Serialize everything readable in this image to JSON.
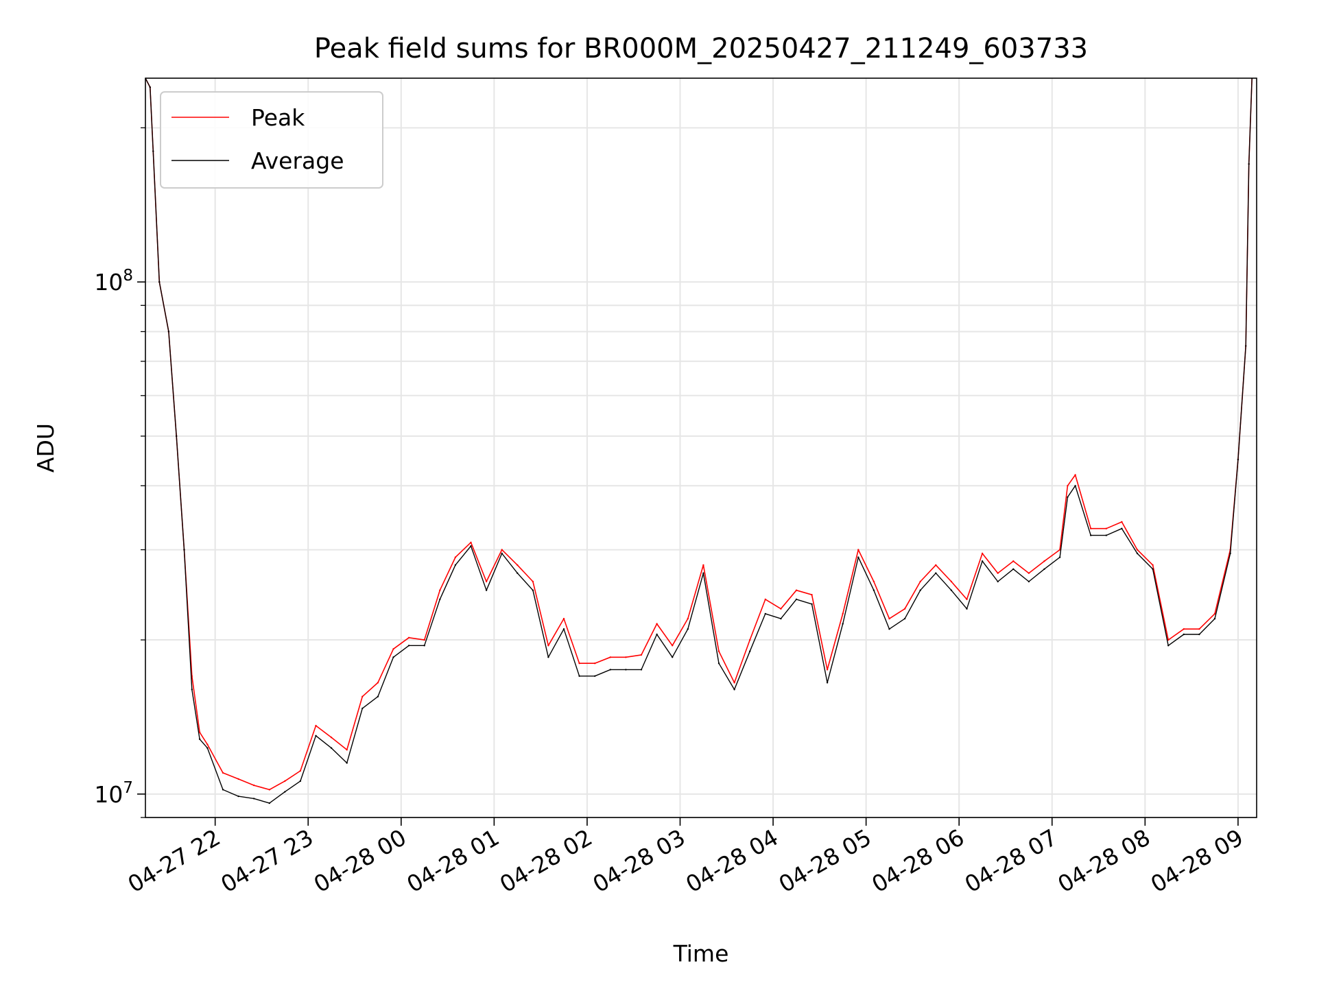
{
  "chart_data": {
    "type": "line",
    "title": "Peak field sums for BR000M_20250427_211249_603733",
    "xlabel": "Time",
    "ylabel": "ADU",
    "yscale": "log",
    "ylim": [
      9000000,
      250000000
    ],
    "xlim": [
      "2025-04-27 21:15",
      "2025-04-28 09:12"
    ],
    "grid": true,
    "legend_position": "top-left",
    "y_major_ticks": [
      {
        "value": 10000000,
        "base": "10",
        "exp": "7"
      },
      {
        "value": 100000000,
        "base": "10",
        "exp": "8"
      }
    ],
    "y_minor_ticks": [
      9000000,
      20000000,
      30000000,
      40000000,
      50000000,
      60000000,
      70000000,
      80000000,
      90000000,
      200000000
    ],
    "x_ticks": [
      {
        "value": "2025-04-27 22:00",
        "label": "04-27 22"
      },
      {
        "value": "2025-04-27 23:00",
        "label": "04-27 23"
      },
      {
        "value": "2025-04-28 00:00",
        "label": "04-28 00"
      },
      {
        "value": "2025-04-28 01:00",
        "label": "04-28 01"
      },
      {
        "value": "2025-04-28 02:00",
        "label": "04-28 02"
      },
      {
        "value": "2025-04-28 03:00",
        "label": "04-28 03"
      },
      {
        "value": "2025-04-28 04:00",
        "label": "04-28 04"
      },
      {
        "value": "2025-04-28 05:00",
        "label": "04-28 05"
      },
      {
        "value": "2025-04-28 06:00",
        "label": "04-28 06"
      },
      {
        "value": "2025-04-28 07:00",
        "label": "04-28 07"
      },
      {
        "value": "2025-04-28 08:00",
        "label": "04-28 08"
      },
      {
        "value": "2025-04-28 09:00",
        "label": "04-28 09"
      }
    ],
    "series": [
      {
        "name": "Peak",
        "color": "#ff0000",
        "x": [
          "2025-04-27 21:15",
          "2025-04-27 21:18",
          "2025-04-27 21:20",
          "2025-04-27 21:24",
          "2025-04-27 21:30",
          "2025-04-27 21:35",
          "2025-04-27 21:40",
          "2025-04-27 21:45",
          "2025-04-27 21:50",
          "2025-04-27 21:55",
          "2025-04-27 22:05",
          "2025-04-27 22:15",
          "2025-04-27 22:25",
          "2025-04-27 22:35",
          "2025-04-27 22:45",
          "2025-04-27 22:55",
          "2025-04-27 23:05",
          "2025-04-27 23:15",
          "2025-04-27 23:25",
          "2025-04-27 23:35",
          "2025-04-27 23:45",
          "2025-04-27 23:55",
          "2025-04-28 00:05",
          "2025-04-28 00:15",
          "2025-04-28 00:25",
          "2025-04-28 00:35",
          "2025-04-28 00:45",
          "2025-04-28 00:55",
          "2025-04-28 01:05",
          "2025-04-28 01:15",
          "2025-04-28 01:25",
          "2025-04-28 01:35",
          "2025-04-28 01:45",
          "2025-04-28 01:55",
          "2025-04-28 02:05",
          "2025-04-28 02:15",
          "2025-04-28 02:25",
          "2025-04-28 02:35",
          "2025-04-28 02:45",
          "2025-04-28 02:55",
          "2025-04-28 03:05",
          "2025-04-28 03:15",
          "2025-04-28 03:25",
          "2025-04-28 03:35",
          "2025-04-28 03:45",
          "2025-04-28 03:55",
          "2025-04-28 04:05",
          "2025-04-28 04:15",
          "2025-04-28 04:25",
          "2025-04-28 04:35",
          "2025-04-28 04:45",
          "2025-04-28 04:55",
          "2025-04-28 05:05",
          "2025-04-28 05:15",
          "2025-04-28 05:25",
          "2025-04-28 05:35",
          "2025-04-28 05:45",
          "2025-04-28 05:55",
          "2025-04-28 06:05",
          "2025-04-28 06:15",
          "2025-04-28 06:25",
          "2025-04-28 06:35",
          "2025-04-28 06:45",
          "2025-04-28 06:55",
          "2025-04-28 07:05",
          "2025-04-28 07:10",
          "2025-04-28 07:15",
          "2025-04-28 07:25",
          "2025-04-28 07:35",
          "2025-04-28 07:45",
          "2025-04-28 07:55",
          "2025-04-28 08:05",
          "2025-04-28 08:15",
          "2025-04-28 08:25",
          "2025-04-28 08:35",
          "2025-04-28 08:45",
          "2025-04-28 08:55",
          "2025-04-28 09:00",
          "2025-04-28 09:05",
          "2025-04-28 09:07",
          "2025-04-28 09:09"
        ],
        "values": [
          250000000,
          240000000,
          180000000,
          100000000,
          80000000,
          50000000,
          30000000,
          17000000,
          13200000,
          12500000,
          11000000,
          10700000,
          10400000,
          10200000,
          10600000,
          11100000,
          13600000,
          12900000,
          12200000,
          15500000,
          16500000,
          19200000,
          20200000,
          20000000,
          25000000,
          29000000,
          31000000,
          26000000,
          30000000,
          28000000,
          26000000,
          19500000,
          22000000,
          18000000,
          18000000,
          18500000,
          18500000,
          18700000,
          21500000,
          19500000,
          22000000,
          28000000,
          19000000,
          16500000,
          20000000,
          24000000,
          23000000,
          25000000,
          24500000,
          17500000,
          22500000,
          30000000,
          26000000,
          22000000,
          23000000,
          26000000,
          28000000,
          26000000,
          24000000,
          29500000,
          27000000,
          28500000,
          27000000,
          28500000,
          30000000,
          40000000,
          42000000,
          33000000,
          33000000,
          34000000,
          30000000,
          28000000,
          20000000,
          21000000,
          21000000,
          22500000,
          30000000,
          45000000,
          75000000,
          170000000,
          250000000
        ]
      },
      {
        "name": "Average",
        "color": "#000000",
        "x": [
          "2025-04-27 21:15",
          "2025-04-27 21:18",
          "2025-04-27 21:20",
          "2025-04-27 21:24",
          "2025-04-27 21:30",
          "2025-04-27 21:35",
          "2025-04-27 21:40",
          "2025-04-27 21:45",
          "2025-04-27 21:50",
          "2025-04-27 21:55",
          "2025-04-27 22:05",
          "2025-04-27 22:15",
          "2025-04-27 22:25",
          "2025-04-27 22:35",
          "2025-04-27 22:45",
          "2025-04-27 22:55",
          "2025-04-27 23:05",
          "2025-04-27 23:15",
          "2025-04-27 23:25",
          "2025-04-27 23:35",
          "2025-04-27 23:45",
          "2025-04-27 23:55",
          "2025-04-28 00:05",
          "2025-04-28 00:15",
          "2025-04-28 00:25",
          "2025-04-28 00:35",
          "2025-04-28 00:45",
          "2025-04-28 00:55",
          "2025-04-28 01:05",
          "2025-04-28 01:15",
          "2025-04-28 01:25",
          "2025-04-28 01:35",
          "2025-04-28 01:45",
          "2025-04-28 01:55",
          "2025-04-28 02:05",
          "2025-04-28 02:15",
          "2025-04-28 02:25",
          "2025-04-28 02:35",
          "2025-04-28 02:45",
          "2025-04-28 02:55",
          "2025-04-28 03:05",
          "2025-04-28 03:15",
          "2025-04-28 03:25",
          "2025-04-28 03:35",
          "2025-04-28 03:45",
          "2025-04-28 03:55",
          "2025-04-28 04:05",
          "2025-04-28 04:15",
          "2025-04-28 04:25",
          "2025-04-28 04:35",
          "2025-04-28 04:45",
          "2025-04-28 04:55",
          "2025-04-28 05:05",
          "2025-04-28 05:15",
          "2025-04-28 05:25",
          "2025-04-28 05:35",
          "2025-04-28 05:45",
          "2025-04-28 05:55",
          "2025-04-28 06:05",
          "2025-04-28 06:15",
          "2025-04-28 06:25",
          "2025-04-28 06:35",
          "2025-04-28 06:45",
          "2025-04-28 06:55",
          "2025-04-28 07:05",
          "2025-04-28 07:10",
          "2025-04-28 07:15",
          "2025-04-28 07:25",
          "2025-04-28 07:35",
          "2025-04-28 07:45",
          "2025-04-28 07:55",
          "2025-04-28 08:05",
          "2025-04-28 08:15",
          "2025-04-28 08:25",
          "2025-04-28 08:35",
          "2025-04-28 08:45",
          "2025-04-28 08:55",
          "2025-04-28 09:00",
          "2025-04-28 09:05",
          "2025-04-28 09:07",
          "2025-04-28 09:09"
        ],
        "values": [
          250000000,
          240000000,
          180000000,
          100000000,
          80000000,
          50000000,
          30000000,
          16000000,
          12800000,
          12300000,
          10200000,
          9900000,
          9800000,
          9600000,
          10100000,
          10600000,
          13000000,
          12300000,
          11500000,
          14700000,
          15500000,
          18500000,
          19500000,
          19500000,
          24000000,
          28000000,
          30500000,
          25000000,
          29500000,
          27000000,
          25000000,
          18500000,
          21000000,
          17000000,
          17000000,
          17500000,
          17500000,
          17500000,
          20500000,
          18500000,
          21000000,
          27000000,
          18000000,
          16000000,
          19000000,
          22500000,
          22000000,
          24000000,
          23500000,
          16500000,
          21500000,
          29000000,
          25000000,
          21000000,
          22000000,
          25000000,
          27000000,
          25000000,
          23000000,
          28500000,
          26000000,
          27500000,
          26000000,
          27500000,
          29000000,
          38000000,
          40000000,
          32000000,
          32000000,
          33000000,
          29500000,
          27500000,
          19500000,
          20500000,
          20500000,
          22000000,
          29500000,
          45000000,
          75000000,
          170000000,
          250000000
        ]
      }
    ]
  }
}
